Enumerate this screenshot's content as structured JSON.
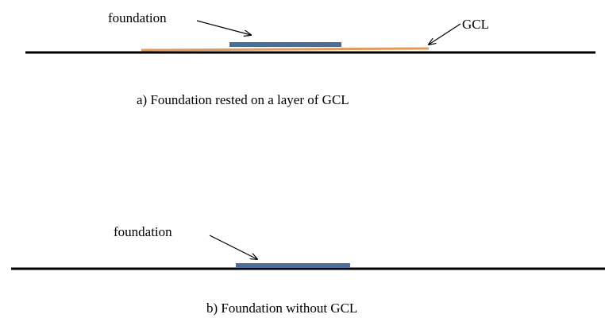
{
  "panel_a": {
    "foundation_label": "foundation",
    "gcl_label": "GCL",
    "caption": "a) Foundation  rested  on a layer of GCL"
  },
  "panel_b": {
    "foundation_label": "foundation",
    "caption": "b) Foundation  without GCL"
  }
}
